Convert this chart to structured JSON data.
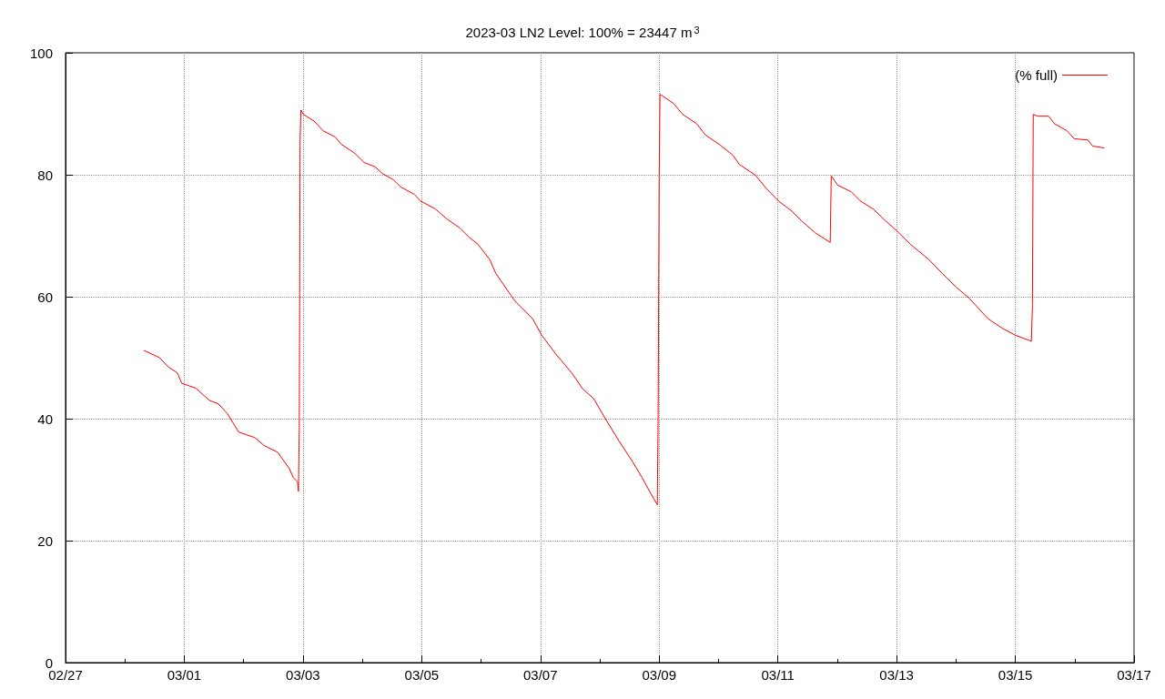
{
  "chart_data": {
    "type": "line",
    "title": "2023-03 LN2 Level: 100% = 23447 m$^{3}$",
    "x": [
      "2023-02-28T07:40",
      "2023-02-28T14:00",
      "2023-02-28T17:30",
      "2023-02-28T21:15",
      "2023-02-28T23:00",
      "2023-03-01T04:40",
      "2023-03-01T10:10",
      "2023-03-01T13:50",
      "2023-03-01T17:30",
      "2023-03-01T22:00",
      "2023-03-02T04:30",
      "2023-03-02T08:15",
      "2023-03-02T13:45",
      "2023-03-02T18:30",
      "2023-03-02T20:00",
      "2023-03-02T21:50",
      "2023-03-02T22:10",
      "2023-03-02T22:30",
      "2023-03-02T22:50",
      "2023-03-02T23:10",
      "2023-03-03T00:10",
      "2023-03-03T04:30",
      "2023-03-03T08:10",
      "2023-03-03T13:00",
      "2023-03-03T15:30",
      "2023-03-03T21:00",
      "2023-03-04T00:45",
      "2023-03-04T05:10",
      "2023-03-04T08:05",
      "2023-03-04T12:30",
      "2023-03-04T15:30",
      "2023-03-04T21:00",
      "2023-03-04T23:30",
      "2023-03-05T05:30",
      "2023-03-05T10:00",
      "2023-03-05T15:20",
      "2023-03-05T19:00",
      "2023-03-05T22:45",
      "2023-03-06T03:30",
      "2023-03-06T06:00",
      "2023-03-06T13:30",
      "2023-03-06T20:50",
      "2023-03-07T00:30",
      "2023-03-07T06:00",
      "2023-03-07T12:40",
      "2023-03-07T17:05",
      "2023-03-07T21:30",
      "2023-03-08T02:15",
      "2023-03-08T07:50",
      "2023-03-08T13:20",
      "2023-03-08T17:00",
      "2023-03-08T21:45",
      "2023-03-08T23:15",
      "2023-03-08T23:35",
      "2023-03-09T00:00",
      "2023-03-09T00:20",
      "2023-03-09T05:50",
      "2023-03-09T09:30",
      "2023-03-09T15:05",
      "2023-03-09T18:45",
      "2023-03-10T00:15",
      "2023-03-10T05:50",
      "2023-03-10T08:25",
      "2023-03-10T15:00",
      "2023-03-10T19:25",
      "2023-03-11T00:15",
      "2023-03-11T05:45",
      "2023-03-11T09:25",
      "2023-03-11T15:00",
      "2023-03-11T21:10",
      "2023-03-11T21:35",
      "2023-03-12T00:10",
      "2023-03-12T05:40",
      "2023-03-12T09:20",
      "2023-03-12T14:50",
      "2023-03-12T18:35",
      "2023-03-13T00:05",
      "2023-03-13T05:35",
      "2023-03-13T13:00",
      "2023-03-13T18:30",
      "2023-03-14T00:00",
      "2023-03-14T05:30",
      "2023-03-14T12:55",
      "2023-03-14T18:25",
      "2023-03-14T23:55",
      "2023-03-15T06:30",
      "2023-03-15T06:55",
      "2023-03-15T07:15",
      "2023-03-15T09:05",
      "2023-03-15T13:30",
      "2023-03-15T15:45",
      "2023-03-15T20:55",
      "2023-03-15T23:50",
      "2023-03-16T05:20",
      "2023-03-16T07:15",
      "2023-03-16T12:00"
    ],
    "series": [
      {
        "name": "(% full)",
        "color": "#ff0000",
        "values": [
          51.2,
          50.0,
          48.5,
          47.5,
          45.8,
          45.0,
          43.0,
          42.4,
          40.8,
          37.8,
          36.9,
          35.6,
          34.5,
          31.8,
          30.4,
          29.6,
          28.1,
          38.5,
          85.4,
          90.6,
          89.9,
          88.8,
          87.2,
          86.2,
          85.0,
          83.5,
          82.0,
          81.3,
          80.2,
          79.2,
          78.0,
          76.8,
          75.7,
          74.4,
          72.8,
          71.3,
          69.8,
          68.6,
          66.1,
          63.8,
          59.4,
          56.4,
          53.7,
          50.7,
          47.5,
          44.9,
          43.3,
          40.0,
          36.3,
          32.9,
          30.4,
          26.9,
          25.9,
          40.0,
          79.5,
          93.2,
          91.7,
          89.9,
          88.4,
          86.5,
          85.0,
          83.2,
          81.7,
          79.9,
          77.7,
          75.7,
          74.0,
          72.5,
          70.5,
          68.9,
          79.8,
          78.3,
          77.2,
          75.7,
          74.3,
          72.8,
          70.8,
          68.6,
          66.1,
          63.8,
          61.6,
          59.7,
          56.4,
          54.9,
          53.7,
          52.7,
          58.6,
          89.9,
          89.6,
          89.6,
          88.4,
          87.2,
          85.9,
          85.7,
          84.7,
          84.4
        ]
      }
    ],
    "xlim": [
      "2023-02-27",
      "2023-03-17"
    ],
    "xticks": [
      {
        "value": "2023-02-27",
        "label": "02/27"
      },
      {
        "value": "2023-02-28",
        "label": null
      },
      {
        "value": "2023-03-01",
        "label": "03/01"
      },
      {
        "value": "2023-03-02",
        "label": null
      },
      {
        "value": "2023-03-03",
        "label": "03/03"
      },
      {
        "value": "2023-03-04",
        "label": null
      },
      {
        "value": "2023-03-05",
        "label": "03/05"
      },
      {
        "value": "2023-03-06",
        "label": null
      },
      {
        "value": "2023-03-07",
        "label": "03/07"
      },
      {
        "value": "2023-03-08",
        "label": null
      },
      {
        "value": "2023-03-09",
        "label": "03/09"
      },
      {
        "value": "2023-03-10",
        "label": null
      },
      {
        "value": "2023-03-11",
        "label": "03/11"
      },
      {
        "value": "2023-03-12",
        "label": null
      },
      {
        "value": "2023-03-13",
        "label": "03/13"
      },
      {
        "value": "2023-03-14",
        "label": null
      },
      {
        "value": "2023-03-15",
        "label": "03/15"
      },
      {
        "value": "2023-03-16",
        "label": null
      },
      {
        "value": "2023-03-17",
        "label": "03/17"
      }
    ],
    "ylim": [
      0,
      100
    ],
    "yticks": [
      0,
      20,
      40,
      60,
      80,
      100
    ],
    "grid": true,
    "legend": "top right",
    "marker": "none",
    "line_style": "solid"
  }
}
